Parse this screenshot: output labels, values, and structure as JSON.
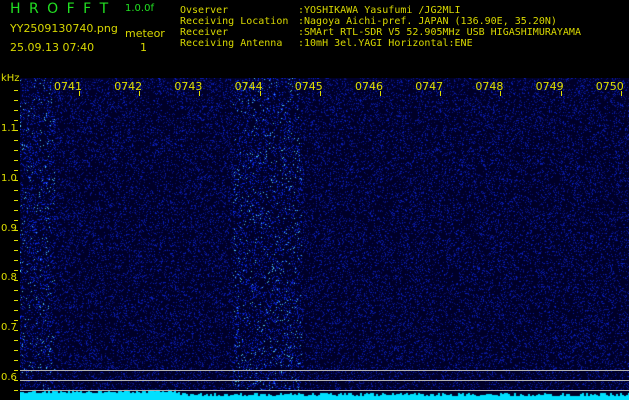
{
  "app": {
    "title": "H R O F F T",
    "version": "1.0.0f"
  },
  "file": {
    "name": "YY2509130740.png",
    "datetime": "25.09.13 07:40"
  },
  "detection": {
    "label": "meteor",
    "count": "1"
  },
  "info": [
    {
      "key": "Ovserver",
      "value": ":YOSHIKAWA Yasufumi /JG2MLI"
    },
    {
      "key": "Receiving Location",
      "value": ":Nagoya Aichi-pref. JAPAN (136.90E, 35.20N)"
    },
    {
      "key": "Receiver",
      "value": ":SMArt RTL-SDR V5 52.905MHz USB HIGASHIMURAYAMA"
    },
    {
      "key": "Receiving Antenna",
      "value": ":10mH 3el.YAGI Horizontal:ENE"
    }
  ],
  "spectrogram": {
    "y_unit": "kHz",
    "y_labels": [
      "1.1",
      "1.0",
      "0.9",
      "0.8",
      "0.7",
      "0.6"
    ],
    "x_labels": [
      "0741",
      "0742",
      "0743",
      "0744",
      "0745",
      "0746",
      "0747",
      "0748",
      "0749",
      "0750"
    ],
    "colors": {
      "background": "#000030",
      "noise": "#2030d0",
      "bright": "#40c0ff",
      "baseline": "#00e0ff",
      "text": "#e0e000"
    }
  }
}
